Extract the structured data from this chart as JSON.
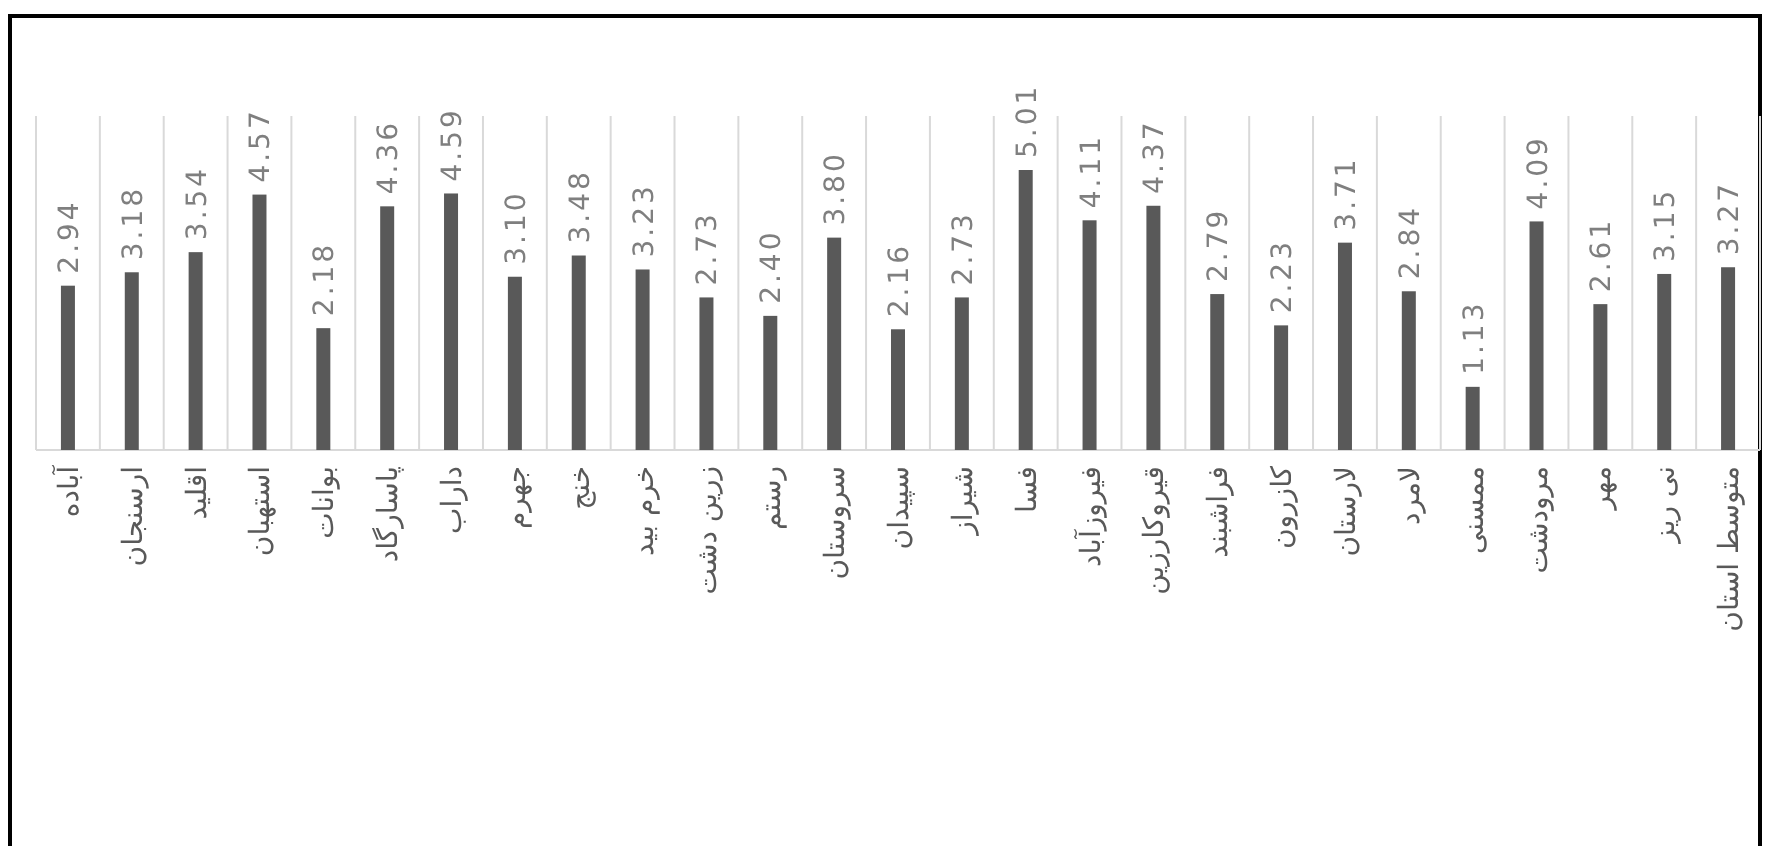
{
  "chart_data": {
    "type": "bar",
    "categories": [
      "آباده",
      "ارسنجان",
      "اقلید",
      "استهبان",
      "بوانات",
      "پاسارگاد",
      "داراب",
      "جهرم",
      "خنج",
      "خرم بید",
      "زرین دشت",
      "رستم",
      "سروستان",
      "سپیدان",
      "شیراز",
      "فسا",
      "فیروزآباد",
      "قیروکارزین",
      "فراشبند",
      "کازرون",
      "لارستان",
      "لامرد",
      "ممسنی",
      "مرودشت",
      "مهر",
      "نی ریز",
      "متوسط استان"
    ],
    "values": [
      2.94,
      3.18,
      3.54,
      4.57,
      2.18,
      4.36,
      4.59,
      3.1,
      3.48,
      3.23,
      2.73,
      2.4,
      3.8,
      2.16,
      2.73,
      5.01,
      4.11,
      4.37,
      2.79,
      2.23,
      3.71,
      2.84,
      1.13,
      4.09,
      2.61,
      3.15,
      3.27
    ],
    "value_labels": [
      "2.94",
      "3.18",
      "3.54",
      "4.57",
      "2.18",
      "4.36",
      "4.59",
      "3.10",
      "3.48",
      "3.23",
      "2.73",
      "2.40",
      "3.80",
      "2.16",
      "2.73",
      "5.01",
      "4.11",
      "4.37",
      "2.79",
      "2.23",
      "3.71",
      "2.84",
      "1.13",
      "4.09",
      "2.61",
      "3.15",
      "3.27"
    ],
    "color": "#595959",
    "grid": "x"
  }
}
